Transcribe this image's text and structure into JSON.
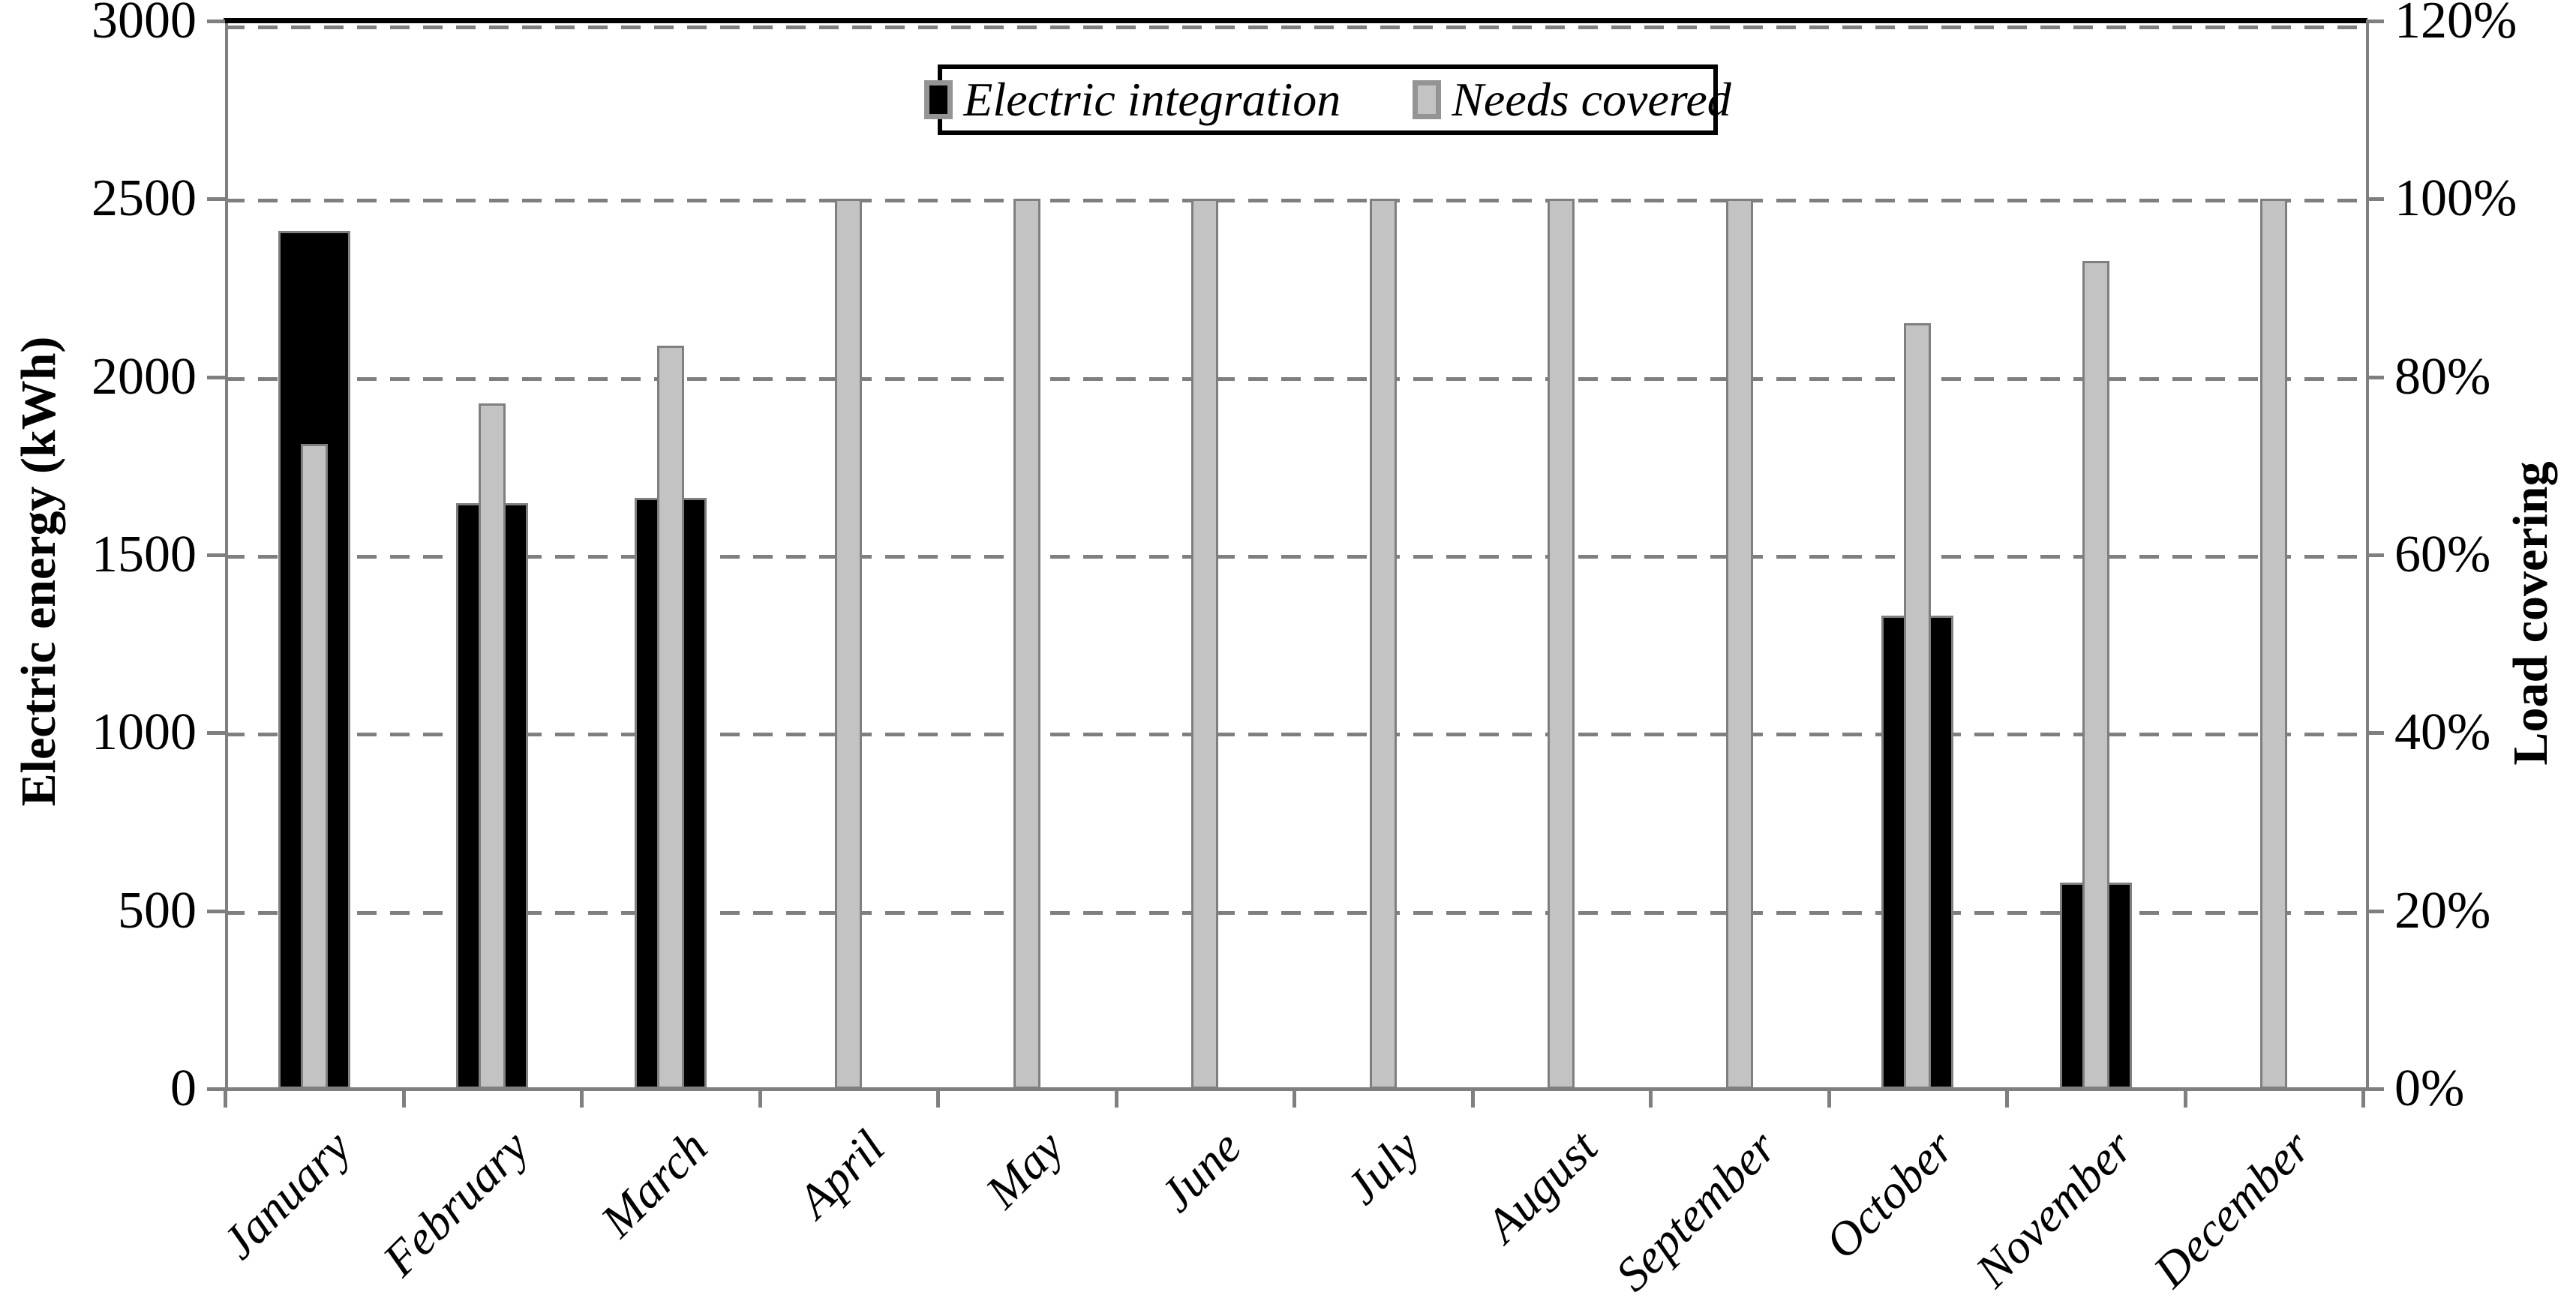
{
  "chart_data": {
    "type": "bar",
    "title": "",
    "categories": [
      "January",
      "February",
      "March",
      "April",
      "May",
      "June",
      "July",
      "August",
      "September",
      "October",
      "November",
      "December"
    ],
    "series": [
      {
        "name": "Electric integration",
        "axis": "left",
        "unit": "kWh",
        "fill": "#000000",
        "border": "#7F7F7F",
        "values": [
          2410,
          1645,
          1660,
          0,
          0,
          0,
          0,
          0,
          0,
          1330,
          580,
          0
        ]
      },
      {
        "name": "Needs covered",
        "axis": "right",
        "unit": "%",
        "fill": "#C3C3C3",
        "border": "#7F7F7F",
        "values": [
          72.5,
          77,
          83.5,
          100,
          100,
          100,
          100,
          100,
          100,
          86,
          93,
          100
        ]
      }
    ],
    "left_axis": {
      "title": "Electric energy (kWh)",
      "min": 0,
      "max": 3000,
      "step": 500,
      "tick_labels": [
        "3000",
        "2500",
        "2000",
        "1500",
        "1000",
        "500",
        "0"
      ]
    },
    "right_axis": {
      "title": "Load covering",
      "min": 0,
      "max": 120,
      "step": 20,
      "tick_labels": [
        "120%",
        "100%",
        "80%",
        "60%",
        "40%",
        "20%",
        "0%"
      ]
    },
    "legend": {
      "position": "top-center",
      "entries": [
        {
          "label": "Electric integration",
          "fill": "#000000"
        },
        {
          "label": "Needs covered",
          "fill": "#C3C3C3"
        }
      ]
    },
    "grid": {
      "shown": true,
      "style": "dashed",
      "color": "#7F7F7F"
    },
    "colors": {
      "axis": "#7F7F7F",
      "plot_top_border": "#000000",
      "text": "#000000",
      "background": "#FFFFFF"
    }
  }
}
